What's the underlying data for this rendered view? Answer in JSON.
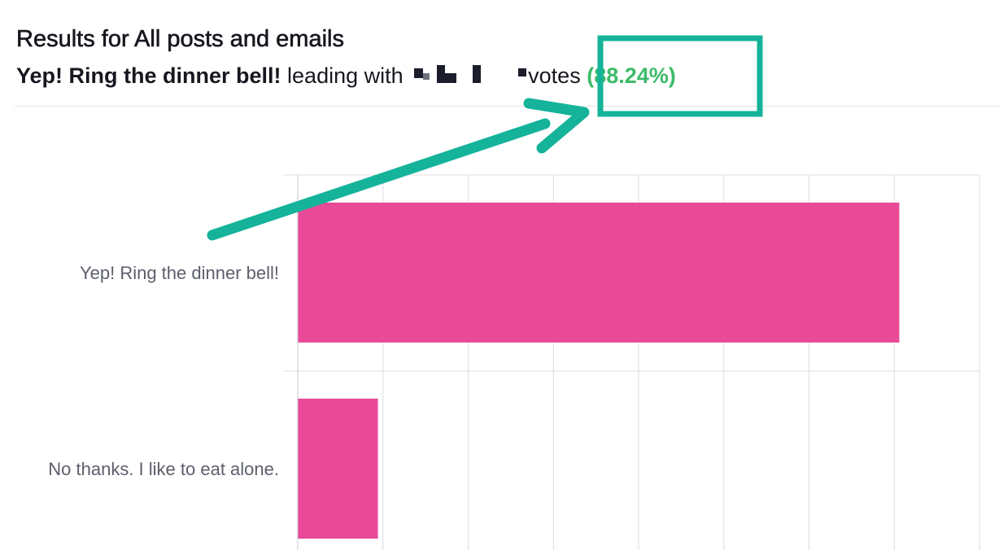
{
  "header": {
    "title": "Results for All posts and emails",
    "leader": "Yep! Ring the dinner bell!",
    "leading_with": "leading with",
    "votes_word": "votes",
    "percent": "(88.24%)"
  },
  "annotation": {
    "color": "#14b39a"
  },
  "chart_data": {
    "type": "bar",
    "orientation": "horizontal",
    "categories": [
      "Yep! Ring the dinner bell!",
      "No thanks. I like to eat alone."
    ],
    "values": [
      88.24,
      11.76
    ],
    "xlim": [
      0,
      100
    ],
    "grid": true,
    "bar_color": "#e94a97",
    "grid_color": "#dcdde2"
  }
}
